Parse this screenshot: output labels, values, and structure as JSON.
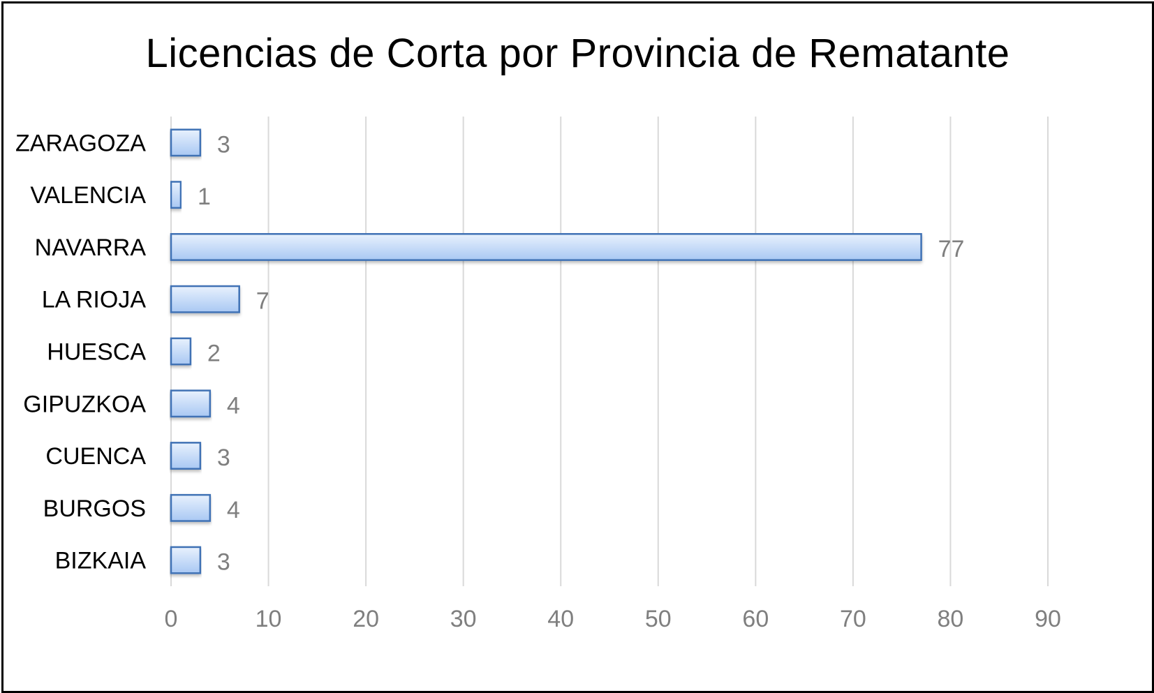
{
  "chart_data": {
    "type": "bar",
    "orientation": "horizontal",
    "title": "Licencias de Corta por Provincia de Rematante",
    "categories": [
      "ZARAGOZA",
      "VALENCIA",
      "NAVARRA",
      "LA RIOJA",
      "HUESCA",
      "GIPUZKOA",
      "CUENCA",
      "BURGOS",
      "BIZKAIA"
    ],
    "values": [
      3,
      1,
      77,
      7,
      2,
      4,
      3,
      4,
      3
    ],
    "xlim": [
      0,
      90
    ],
    "xticks": [
      0,
      10,
      20,
      30,
      40,
      50,
      60,
      70,
      80,
      90
    ],
    "xlabel": "",
    "ylabel": "",
    "grid": "vertical",
    "legend": "none",
    "data_labels": true,
    "colors": {
      "bar_fill_top": "#e8f1fd",
      "bar_fill_bottom": "#a9c8f3",
      "bar_stroke": "#3f72b5",
      "grid": "#d9d9d9",
      "tick_text": "#7f7f7f",
      "category_text": "#000000"
    }
  }
}
